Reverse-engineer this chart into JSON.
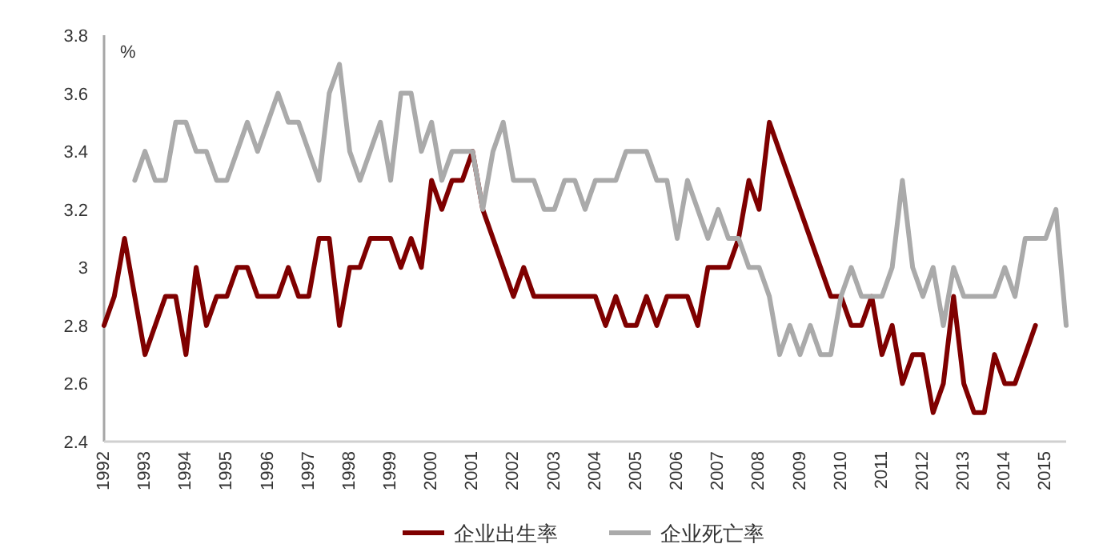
{
  "chart_data": {
    "type": "line",
    "ylabel": "%",
    "x": [
      1992,
      1992.25,
      1992.5,
      1992.75,
      1993,
      1993.25,
      1993.5,
      1993.75,
      1994,
      1994.25,
      1994.5,
      1994.75,
      1995,
      1995.25,
      1995.5,
      1995.75,
      1996,
      1996.25,
      1996.5,
      1996.75,
      1997,
      1997.25,
      1997.5,
      1997.75,
      1998,
      1998.25,
      1998.5,
      1998.75,
      1999,
      1999.25,
      1999.5,
      1999.75,
      2000,
      2000.25,
      2000.5,
      2000.75,
      2001,
      2001.25,
      2001.5,
      2001.75,
      2002,
      2002.25,
      2002.5,
      2002.75,
      2003,
      2003.25,
      2003.5,
      2003.75,
      2004,
      2004.25,
      2004.5,
      2004.75,
      2005,
      2005.25,
      2005.5,
      2005.75,
      2006,
      2006.25,
      2006.5,
      2006.75,
      2007,
      2007.25,
      2007.5,
      2007.75,
      2008,
      2008.25,
      2008.5,
      2008.75,
      2009,
      2009.25,
      2009.5,
      2009.75,
      2010,
      2010.25,
      2010.5,
      2010.75,
      2011,
      2011.25,
      2011.5,
      2011.75,
      2012,
      2012.25,
      2012.5,
      2012.75,
      2013,
      2013.25,
      2013.5,
      2013.75,
      2014,
      2014.25,
      2014.5,
      2014.75,
      2015,
      2015.25,
      2015.5
    ],
    "series": [
      {
        "name": "企业出生率",
        "color": "#7f0000",
        "values": [
          2.8,
          2.9,
          3.1,
          2.9,
          2.7,
          2.8,
          2.9,
          2.9,
          2.7,
          3.0,
          2.8,
          2.9,
          2.9,
          3.0,
          3.0,
          2.9,
          2.9,
          2.9,
          3.0,
          2.9,
          2.9,
          3.1,
          3.1,
          2.8,
          3.0,
          3.0,
          3.1,
          3.1,
          3.1,
          3.0,
          3.1,
          3.0,
          3.3,
          3.2,
          3.3,
          3.3,
          3.4,
          3.2,
          3.1,
          3.0,
          2.9,
          3.0,
          2.9,
          2.9,
          2.9,
          2.9,
          2.9,
          2.9,
          2.9,
          2.8,
          2.9,
          2.8,
          2.8,
          2.9,
          2.8,
          2.9,
          2.9,
          2.9,
          2.8,
          3.0,
          3.0,
          3.0,
          3.1,
          3.3,
          3.2,
          3.5,
          3.4,
          3.3,
          3.2,
          3.1,
          3.0,
          2.9,
          2.9,
          2.8,
          2.8,
          2.9,
          2.7,
          2.8,
          2.6,
          2.7,
          2.7,
          2.5,
          2.6,
          2.9,
          2.6,
          2.5,
          2.5,
          2.7,
          2.6,
          2.6,
          2.7,
          2.8,
          null,
          null,
          null
        ]
      },
      {
        "name": "企业死亡率",
        "color": "#aaaaaa",
        "values": [
          null,
          null,
          null,
          3.3,
          3.4,
          3.3,
          3.3,
          3.5,
          3.5,
          3.4,
          3.4,
          3.3,
          3.3,
          3.4,
          3.5,
          3.4,
          3.5,
          3.6,
          3.5,
          3.5,
          3.4,
          3.3,
          3.6,
          3.7,
          3.4,
          3.3,
          3.4,
          3.5,
          3.3,
          3.6,
          3.6,
          3.4,
          3.5,
          3.3,
          3.4,
          3.4,
          3.4,
          3.2,
          3.4,
          3.5,
          3.3,
          3.3,
          3.3,
          3.2,
          3.2,
          3.3,
          3.3,
          3.2,
          3.3,
          3.3,
          3.3,
          3.4,
          3.4,
          3.4,
          3.3,
          3.3,
          3.1,
          3.3,
          3.2,
          3.1,
          3.2,
          3.1,
          3.1,
          3.0,
          3.0,
          2.9,
          2.7,
          2.8,
          2.7,
          2.8,
          2.7,
          2.7,
          2.9,
          3.0,
          2.9,
          2.9,
          2.9,
          3.0,
          3.3,
          3.0,
          2.9,
          3.0,
          2.8,
          3.0,
          2.9,
          2.9,
          2.9,
          2.9,
          3.0,
          2.9,
          3.1,
          3.1,
          3.1,
          3.2,
          2.8
        ]
      }
    ],
    "xlim": [
      1992,
      2015.5
    ],
    "xticks": [
      1992,
      1993,
      1994,
      1995,
      1996,
      1997,
      1998,
      1999,
      2000,
      2001,
      2002,
      2003,
      2004,
      2005,
      2006,
      2007,
      2008,
      2009,
      2010,
      2011,
      2012,
      2013,
      2014,
      2015
    ],
    "ylim": [
      2.4,
      3.8
    ],
    "yticks": [
      2.4,
      2.6,
      2.8,
      3,
      3.2,
      3.4,
      3.6,
      3.8
    ],
    "legend": "bottom",
    "grid": false,
    "marker": "none",
    "line_style": "solid"
  }
}
